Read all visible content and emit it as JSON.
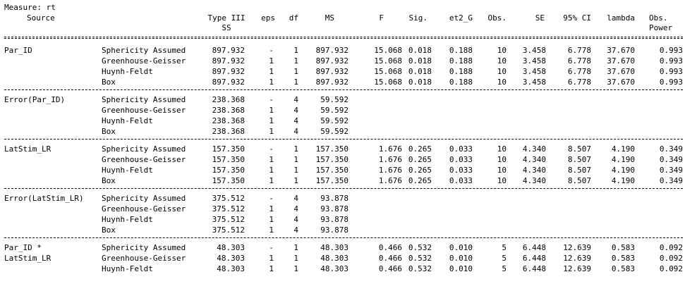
{
  "measure_label": "Measure: rt",
  "headers": {
    "source": "Source",
    "ss_line1": "Type III",
    "ss_line2": "SS",
    "eps": "eps",
    "df": "df",
    "ms": "MS",
    "f": "F",
    "sig": "Sig.",
    "et2g": "et2_G",
    "obs": "Obs.",
    "se": "SE",
    "ci": "95% CI",
    "lambda": "lambda",
    "power_line1": "Obs.",
    "power_line2": "Power"
  },
  "groups": [
    {
      "name": "Par_ID",
      "rows": [
        {
          "source": "Par_ID",
          "correction": "Sphericity Assumed",
          "ss": "897.932",
          "eps": "-",
          "df": "1",
          "ms": "897.932",
          "f": "15.068",
          "sig": "0.018",
          "et2g": "0.188",
          "obs": "10",
          "se": "3.458",
          "ci": "6.778",
          "lambda": "37.670",
          "power": "0.993"
        },
        {
          "source": "",
          "correction": "Greenhouse-Geisser",
          "ss": "897.932",
          "eps": "1",
          "df": "1",
          "ms": "897.932",
          "f": "15.068",
          "sig": "0.018",
          "et2g": "0.188",
          "obs": "10",
          "se": "3.458",
          "ci": "6.778",
          "lambda": "37.670",
          "power": "0.993"
        },
        {
          "source": "",
          "correction": "Huynh-Feldt",
          "ss": "897.932",
          "eps": "1",
          "df": "1",
          "ms": "897.932",
          "f": "15.068",
          "sig": "0.018",
          "et2g": "0.188",
          "obs": "10",
          "se": "3.458",
          "ci": "6.778",
          "lambda": "37.670",
          "power": "0.993"
        },
        {
          "source": "",
          "correction": "Box",
          "ss": "897.932",
          "eps": "1",
          "df": "1",
          "ms": "897.932",
          "f": "15.068",
          "sig": "0.018",
          "et2g": "0.188",
          "obs": "10",
          "se": "3.458",
          "ci": "6.778",
          "lambda": "37.670",
          "power": "0.993"
        }
      ]
    },
    {
      "name": "Error(Par_ID)",
      "rows": [
        {
          "source": "Error(Par_ID)",
          "correction": "Sphericity Assumed",
          "ss": "238.368",
          "eps": "-",
          "df": "4",
          "ms": "59.592",
          "f": "",
          "sig": "",
          "et2g": "",
          "obs": "",
          "se": "",
          "ci": "",
          "lambda": "",
          "power": ""
        },
        {
          "source": "",
          "correction": "Greenhouse-Geisser",
          "ss": "238.368",
          "eps": "1",
          "df": "4",
          "ms": "59.592",
          "f": "",
          "sig": "",
          "et2g": "",
          "obs": "",
          "se": "",
          "ci": "",
          "lambda": "",
          "power": ""
        },
        {
          "source": "",
          "correction": "Huynh-Feldt",
          "ss": "238.368",
          "eps": "1",
          "df": "4",
          "ms": "59.592",
          "f": "",
          "sig": "",
          "et2g": "",
          "obs": "",
          "se": "",
          "ci": "",
          "lambda": "",
          "power": ""
        },
        {
          "source": "",
          "correction": "Box",
          "ss": "238.368",
          "eps": "1",
          "df": "4",
          "ms": "59.592",
          "f": "",
          "sig": "",
          "et2g": "",
          "obs": "",
          "se": "",
          "ci": "",
          "lambda": "",
          "power": ""
        }
      ]
    },
    {
      "name": "LatStim_LR",
      "rows": [
        {
          "source": "LatStim_LR",
          "correction": "Sphericity Assumed",
          "ss": "157.350",
          "eps": "-",
          "df": "1",
          "ms": "157.350",
          "f": "1.676",
          "sig": "0.265",
          "et2g": "0.033",
          "obs": "10",
          "se": "4.340",
          "ci": "8.507",
          "lambda": "4.190",
          "power": "0.349"
        },
        {
          "source": "",
          "correction": "Greenhouse-Geisser",
          "ss": "157.350",
          "eps": "1",
          "df": "1",
          "ms": "157.350",
          "f": "1.676",
          "sig": "0.265",
          "et2g": "0.033",
          "obs": "10",
          "se": "4.340",
          "ci": "8.507",
          "lambda": "4.190",
          "power": "0.349"
        },
        {
          "source": "",
          "correction": "Huynh-Feldt",
          "ss": "157.350",
          "eps": "1",
          "df": "1",
          "ms": "157.350",
          "f": "1.676",
          "sig": "0.265",
          "et2g": "0.033",
          "obs": "10",
          "se": "4.340",
          "ci": "8.507",
          "lambda": "4.190",
          "power": "0.349"
        },
        {
          "source": "",
          "correction": "Box",
          "ss": "157.350",
          "eps": "1",
          "df": "1",
          "ms": "157.350",
          "f": "1.676",
          "sig": "0.265",
          "et2g": "0.033",
          "obs": "10",
          "se": "4.340",
          "ci": "8.507",
          "lambda": "4.190",
          "power": "0.349"
        }
      ]
    },
    {
      "name": "Error(LatStim_LR)",
      "rows": [
        {
          "source": "Error(LatStim_LR)",
          "correction": "Sphericity Assumed",
          "ss": "375.512",
          "eps": "-",
          "df": "4",
          "ms": "93.878",
          "f": "",
          "sig": "",
          "et2g": "",
          "obs": "",
          "se": "",
          "ci": "",
          "lambda": "",
          "power": ""
        },
        {
          "source": "",
          "correction": "Greenhouse-Geisser",
          "ss": "375.512",
          "eps": "1",
          "df": "4",
          "ms": "93.878",
          "f": "",
          "sig": "",
          "et2g": "",
          "obs": "",
          "se": "",
          "ci": "",
          "lambda": "",
          "power": ""
        },
        {
          "source": "",
          "correction": "Huynh-Feldt",
          "ss": "375.512",
          "eps": "1",
          "df": "4",
          "ms": "93.878",
          "f": "",
          "sig": "",
          "et2g": "",
          "obs": "",
          "se": "",
          "ci": "",
          "lambda": "",
          "power": ""
        },
        {
          "source": "",
          "correction": "Box",
          "ss": "375.512",
          "eps": "1",
          "df": "4",
          "ms": "93.878",
          "f": "",
          "sig": "",
          "et2g": "",
          "obs": "",
          "se": "",
          "ci": "",
          "lambda": "",
          "power": ""
        }
      ]
    },
    {
      "name": "Par_ID * LatStim_LR",
      "rows": [
        {
          "source": "Par_ID *",
          "correction": "Sphericity Assumed",
          "ss": "48.303",
          "eps": "-",
          "df": "1",
          "ms": "48.303",
          "f": "0.466",
          "sig": "0.532",
          "et2g": "0.010",
          "obs": "5",
          "se": "6.448",
          "ci": "12.639",
          "lambda": "0.583",
          "power": "0.092"
        },
        {
          "source": "LatStim_LR",
          "correction": "Greenhouse-Geisser",
          "ss": "48.303",
          "eps": "1",
          "df": "1",
          "ms": "48.303",
          "f": "0.466",
          "sig": "0.532",
          "et2g": "0.010",
          "obs": "5",
          "se": "6.448",
          "ci": "12.639",
          "lambda": "0.583",
          "power": "0.092"
        },
        {
          "source": "",
          "correction": "Huynh-Feldt",
          "ss": "48.303",
          "eps": "1",
          "df": "1",
          "ms": "48.303",
          "f": "0.466",
          "sig": "0.532",
          "et2g": "0.010",
          "obs": "5",
          "se": "6.448",
          "ci": "12.639",
          "lambda": "0.583",
          "power": "0.092"
        }
      ]
    }
  ]
}
